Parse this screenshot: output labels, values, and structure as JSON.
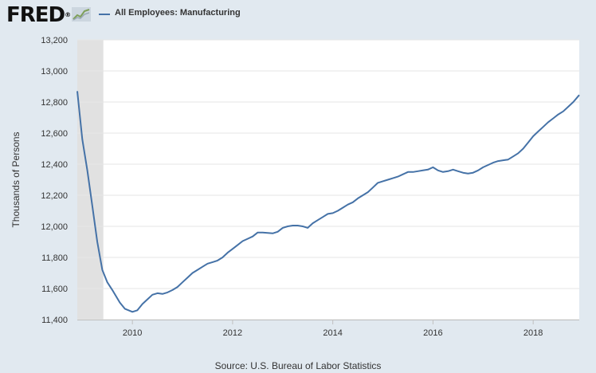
{
  "header": {
    "logo_text": "FRED",
    "logo_mark": "®",
    "logo_icon": "trend-chart-icon",
    "legend_label": "All Employees: Manufacturing"
  },
  "colors": {
    "series": "#4572a7",
    "background": "#e1e9f0",
    "plot_bg": "#ffffff",
    "recession": "#e1e1e1"
  },
  "source": "Source: U.S. Bureau of Labor Statistics",
  "chart_data": {
    "type": "line",
    "title": "All Employees: Manufacturing",
    "xlabel": "",
    "ylabel": "Thousands of Persons",
    "xlim": [
      2008.9,
      2018.92
    ],
    "ylim": [
      11400,
      13200
    ],
    "y_ticks": [
      11400,
      11600,
      11800,
      12000,
      12200,
      12400,
      12600,
      12800,
      13000,
      13200
    ],
    "y_tick_labels": [
      "11,400",
      "11,600",
      "11,800",
      "12,000",
      "12,200",
      "12,400",
      "12,600",
      "12,800",
      "13,000",
      "13,200"
    ],
    "x_ticks": [
      2010,
      2012,
      2014,
      2016,
      2018
    ],
    "x_tick_labels": [
      "2010",
      "2012",
      "2014",
      "2016",
      "2018"
    ],
    "recession_shading": [
      [
        2008.9,
        2009.42
      ]
    ],
    "grid": true,
    "series": [
      {
        "name": "All Employees: Manufacturing",
        "x": [
          2008.9,
          2009.0,
          2009.1,
          2009.2,
          2009.3,
          2009.4,
          2009.5,
          2009.6,
          2009.75,
          2009.85,
          2010.0,
          2010.1,
          2010.2,
          2010.3,
          2010.4,
          2010.5,
          2010.6,
          2010.7,
          2010.8,
          2010.9,
          2011.0,
          2011.1,
          2011.2,
          2011.3,
          2011.4,
          2011.5,
          2011.6,
          2011.7,
          2011.8,
          2011.9,
          2012.0,
          2012.1,
          2012.2,
          2012.3,
          2012.4,
          2012.5,
          2012.6,
          2012.7,
          2012.8,
          2012.9,
          2013.0,
          2013.1,
          2013.2,
          2013.3,
          2013.4,
          2013.5,
          2013.6,
          2013.7,
          2013.8,
          2013.9,
          2014.0,
          2014.1,
          2014.2,
          2014.3,
          2014.4,
          2014.5,
          2014.6,
          2014.7,
          2014.8,
          2014.9,
          2015.0,
          2015.1,
          2015.2,
          2015.3,
          2015.4,
          2015.5,
          2015.6,
          2015.7,
          2015.8,
          2015.9,
          2016.0,
          2016.1,
          2016.2,
          2016.3,
          2016.4,
          2016.5,
          2016.6,
          2016.7,
          2016.8,
          2016.9,
          2017.0,
          2017.1,
          2017.2,
          2017.3,
          2017.4,
          2017.5,
          2017.6,
          2017.7,
          2017.8,
          2017.9,
          2018.0,
          2018.1,
          2018.2,
          2018.3,
          2018.4,
          2018.5,
          2018.6,
          2018.7,
          2018.8,
          2018.92
        ],
        "values": [
          12870,
          12560,
          12360,
          12130,
          11900,
          11720,
          11640,
          11590,
          11510,
          11470,
          11450,
          11460,
          11500,
          11530,
          11560,
          11570,
          11565,
          11575,
          11590,
          11610,
          11640,
          11670,
          11700,
          11720,
          11740,
          11760,
          11770,
          11780,
          11800,
          11830,
          11855,
          11880,
          11905,
          11920,
          11935,
          11960,
          11960,
          11958,
          11955,
          11965,
          11990,
          12000,
          12005,
          12005,
          12000,
          11990,
          12020,
          12040,
          12060,
          12080,
          12085,
          12100,
          12120,
          12140,
          12155,
          12180,
          12200,
          12220,
          12250,
          12280,
          12290,
          12300,
          12310,
          12320,
          12335,
          12350,
          12350,
          12355,
          12360,
          12365,
          12380,
          12360,
          12350,
          12355,
          12365,
          12355,
          12345,
          12340,
          12345,
          12360,
          12380,
          12395,
          12410,
          12420,
          12425,
          12430,
          12450,
          12470,
          12500,
          12540,
          12580,
          12610,
          12640,
          12670,
          12695,
          12720,
          12740,
          12770,
          12800,
          12845
        ]
      }
    ]
  }
}
